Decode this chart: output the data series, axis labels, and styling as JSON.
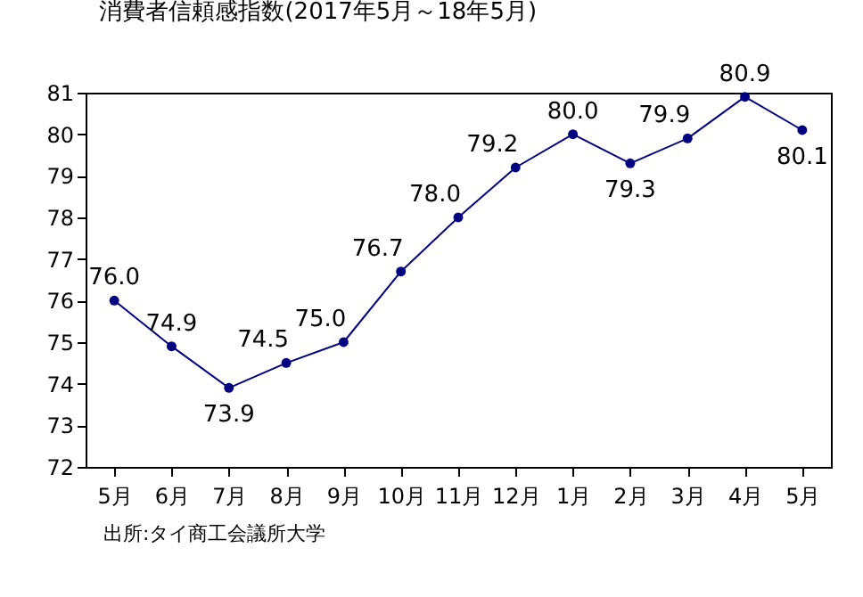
{
  "chart_data": {
    "type": "line",
    "title": "消費者信頼感指数(2017年5月～18年5月)",
    "categories": [
      "5月",
      "6月",
      "7月",
      "8月",
      "9月",
      "10月",
      "11月",
      "12月",
      "1月",
      "2月",
      "3月",
      "4月",
      "5月"
    ],
    "series": [
      {
        "color": "#000080",
        "values": [
          76.0,
          74.9,
          73.9,
          74.5,
          75.0,
          76.7,
          78.0,
          79.2,
          80.0,
          79.3,
          79.9,
          80.9,
          80.1
        ],
        "value_labels": [
          "76.0",
          "74.9",
          "73.9",
          "74.5",
          "75.0",
          "76.7",
          "78.0",
          "79.2",
          "80.0",
          "79.3",
          "79.9",
          "80.9",
          "80.1"
        ]
      }
    ],
    "ylim": [
      72,
      81
    ],
    "yticks": [
      72,
      73,
      74,
      75,
      76,
      77,
      78,
      79,
      80,
      81
    ],
    "marker": "circle",
    "line_style": "solid",
    "grid": false,
    "annotations": [
      "出所:タイ商工会議所大学"
    ]
  }
}
